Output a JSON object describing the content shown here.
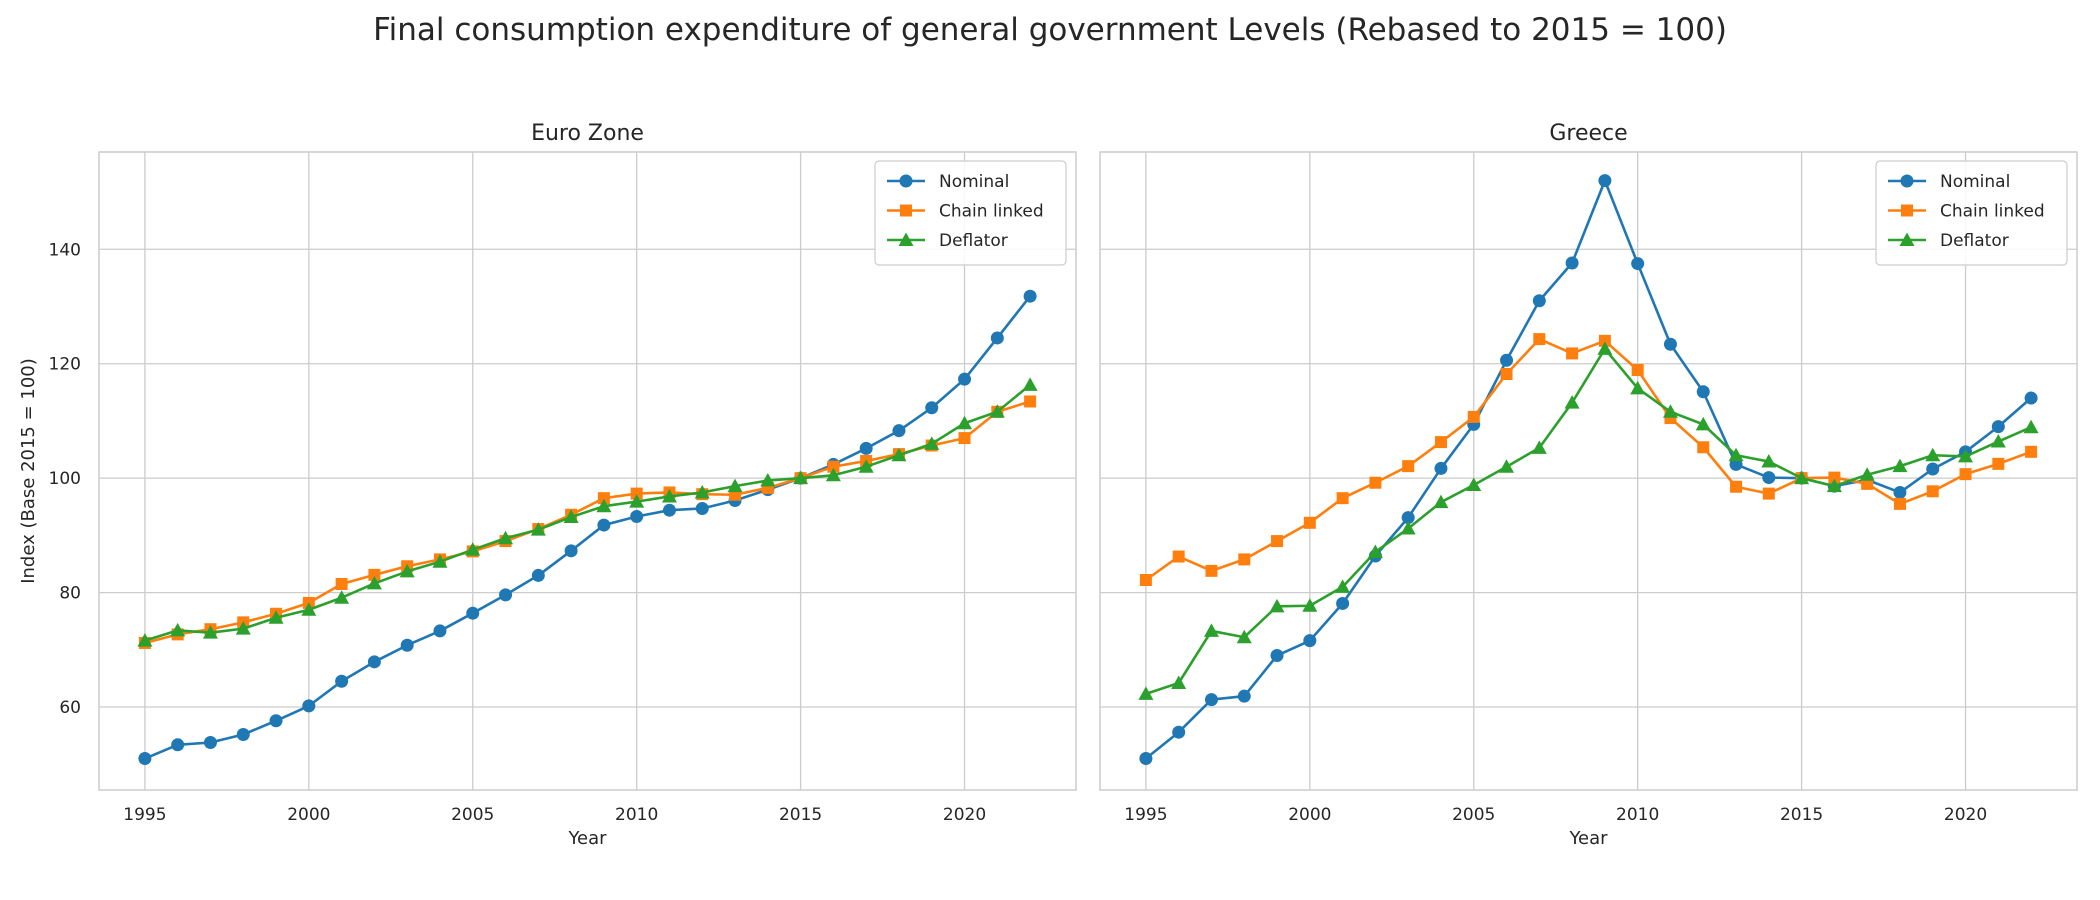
{
  "figure": {
    "title": "Final consumption expenditure of general government Levels (Rebased to 2015 = 100)"
  },
  "colors": {
    "nominal": "#1f77b4",
    "chain_linked": "#ff7f0e",
    "deflator": "#2ca02c",
    "grid": "#cccccc",
    "axes_edge": "#cccccc",
    "text": "#262626"
  },
  "chart_data": [
    {
      "type": "line",
      "title": "Euro Zone",
      "xlabel": "Year",
      "ylabel": "Index (Base 2015 = 100)",
      "xlim": [
        1993.6,
        2023.4
      ],
      "ylim": [
        45.5,
        157
      ],
      "xticks": [
        1995,
        2000,
        2005,
        2010,
        2015,
        2020
      ],
      "yticks": [
        60,
        80,
        100,
        120,
        140
      ],
      "grid": true,
      "legend_position": "upper-right",
      "x": [
        1995,
        1996,
        1997,
        1998,
        1999,
        2000,
        2001,
        2002,
        2003,
        2004,
        2005,
        2006,
        2007,
        2008,
        2009,
        2010,
        2011,
        2012,
        2013,
        2014,
        2015,
        2016,
        2017,
        2018,
        2019,
        2020,
        2021,
        2022
      ],
      "series": [
        {
          "name": "Nominal",
          "marker": "circle",
          "color_key": "nominal",
          "values": [
            51.0,
            53.4,
            53.8,
            55.2,
            57.6,
            60.2,
            64.5,
            67.9,
            70.8,
            73.3,
            76.4,
            79.6,
            83.0,
            87.3,
            91.8,
            93.3,
            94.4,
            94.7,
            96.1,
            98.0,
            100.0,
            102.4,
            105.2,
            108.3,
            112.3,
            117.3,
            124.5,
            131.8
          ]
        },
        {
          "name": "Chain linked",
          "marker": "square",
          "color_key": "chain_linked",
          "values": [
            71.2,
            72.7,
            73.6,
            74.8,
            76.3,
            78.2,
            81.5,
            83.1,
            84.6,
            85.8,
            87.2,
            89.0,
            91.1,
            93.6,
            96.5,
            97.3,
            97.5,
            97.2,
            97.1,
            98.3,
            100.0,
            102.0,
            103.0,
            104.2,
            105.7,
            107.0,
            111.6,
            113.4
          ]
        },
        {
          "name": "Deflator",
          "marker": "triangle",
          "color_key": "deflator",
          "values": [
            71.6,
            73.4,
            73.0,
            73.7,
            75.6,
            77.0,
            79.1,
            81.6,
            83.7,
            85.4,
            87.5,
            89.5,
            91.0,
            93.2,
            95.1,
            95.9,
            96.8,
            97.5,
            98.6,
            99.6,
            100.0,
            100.5,
            102.0,
            104.0,
            106.0,
            109.6,
            111.6,
            116.3
          ]
        }
      ]
    },
    {
      "type": "line",
      "title": "Greece",
      "xlabel": "Year",
      "ylabel": "",
      "xlim": [
        1993.6,
        2023.4
      ],
      "ylim": [
        45.5,
        157
      ],
      "xticks": [
        1995,
        2000,
        2005,
        2010,
        2015,
        2020
      ],
      "yticks": [
        60,
        80,
        100,
        120,
        140
      ],
      "grid": true,
      "legend_position": "upper-right",
      "x": [
        1995,
        1996,
        1997,
        1998,
        1999,
        2000,
        2001,
        2002,
        2003,
        2004,
        2005,
        2006,
        2007,
        2008,
        2009,
        2010,
        2011,
        2012,
        2013,
        2014,
        2015,
        2016,
        2017,
        2018,
        2019,
        2020,
        2021,
        2022
      ],
      "series": [
        {
          "name": "Nominal",
          "marker": "circle",
          "color_key": "nominal",
          "values": [
            51.0,
            55.6,
            61.3,
            61.9,
            69.0,
            71.6,
            78.1,
            86.4,
            93.1,
            101.7,
            109.4,
            120.6,
            131.0,
            137.6,
            152.0,
            137.5,
            123.4,
            115.1,
            102.4,
            100.1,
            100.0,
            98.6,
            99.7,
            97.5,
            101.6,
            104.6,
            109.0,
            114.0
          ]
        },
        {
          "name": "Chain linked",
          "marker": "square",
          "color_key": "chain_linked",
          "values": [
            82.2,
            86.3,
            83.8,
            85.8,
            89.0,
            92.2,
            96.5,
            99.2,
            102.1,
            106.3,
            110.7,
            118.2,
            124.3,
            121.8,
            124.0,
            118.9,
            110.5,
            105.4,
            98.5,
            97.3,
            100.0,
            100.1,
            99.0,
            95.5,
            97.7,
            100.7,
            102.5,
            104.6
          ]
        },
        {
          "name": "Deflator",
          "marker": "triangle",
          "color_key": "deflator",
          "values": [
            62.3,
            64.2,
            73.3,
            72.2,
            77.6,
            77.7,
            81.0,
            87.1,
            91.2,
            95.8,
            98.8,
            102.0,
            105.3,
            113.2,
            122.6,
            115.7,
            111.6,
            109.4,
            104.0,
            102.9,
            100.0,
            98.6,
            100.6,
            102.1,
            104.0,
            103.8,
            106.4,
            108.9
          ]
        }
      ]
    }
  ]
}
